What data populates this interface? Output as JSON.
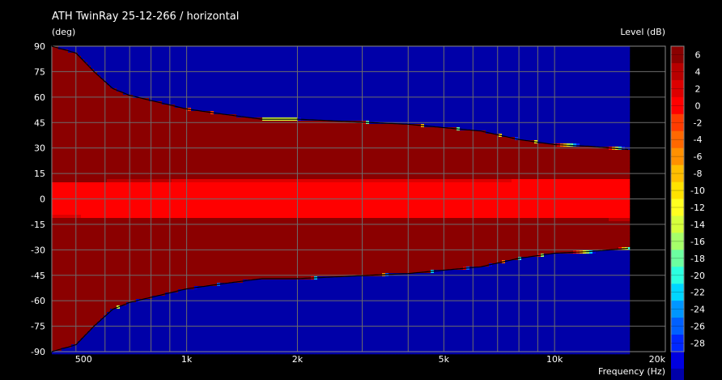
{
  "chart_data": {
    "type": "heatmap",
    "title": "ATH TwinRay 25-12-266 / horizontal",
    "ylabel": "(deg)",
    "xlabel": "Frequency  (Hz)",
    "colorbar_label": "Level  (dB)",
    "x_scale": "log",
    "xlim": [
      430,
      20000
    ],
    "ylim": [
      -90,
      90
    ],
    "data_xlim": [
      430,
      16000
    ],
    "x_ticks": [
      {
        "value": 500,
        "label": "500"
      },
      {
        "value": 1000,
        "label": "1k"
      },
      {
        "value": 2000,
        "label": "2k"
      },
      {
        "value": 5000,
        "label": "5k"
      },
      {
        "value": 10000,
        "label": "10k"
      },
      {
        "value": 20000,
        "label": "20k"
      }
    ],
    "x_minor_grid": [
      600,
      700,
      800,
      900,
      3000,
      4000,
      6000,
      7000,
      8000,
      9000
    ],
    "y_ticks": [
      90,
      75,
      60,
      45,
      30,
      15,
      0,
      -15,
      -30,
      -45,
      -60,
      -75,
      -90
    ],
    "grid": true,
    "colorbar": {
      "range": [
        -29,
        7
      ],
      "step": 2,
      "tick_labels": [
        "6",
        "4",
        "2",
        "0",
        "-2",
        "-4",
        "-6",
        "-8",
        "-10",
        "-12",
        "-14",
        "-16",
        "-18",
        "-20",
        "-22",
        "-24",
        "-26",
        "-28"
      ],
      "colors": [
        "#8b0000",
        "#b80000",
        "#dd0000",
        "#ff0000",
        "#ff3c00",
        "#ff6800",
        "#ff9000",
        "#ffbe00",
        "#ffe200",
        "#ffff20",
        "#d6ff3c",
        "#a6ff6a",
        "#6cffa0",
        "#2cffe0",
        "#00d6ff",
        "#0096ff",
        "#0060ff",
        "#0028ff",
        "#0000e0",
        "#0000a8"
      ]
    },
    "contour_line_db": -6,
    "frequencies_hz": [
      430,
      500,
      560,
      630,
      700,
      800,
      1000,
      1250,
      1600,
      2000,
      2500,
      3150,
      4000,
      5000,
      6300,
      8000,
      10000,
      12500,
      16000
    ],
    "minus6db_angle_deg": [
      90,
      86,
      75,
      65,
      61,
      58,
      53,
      50,
      47,
      47,
      46,
      45,
      44,
      42,
      40,
      35,
      32,
      31,
      29
    ],
    "db_per_deg2": 0.0027,
    "peak_plateau_deg": 10
  }
}
